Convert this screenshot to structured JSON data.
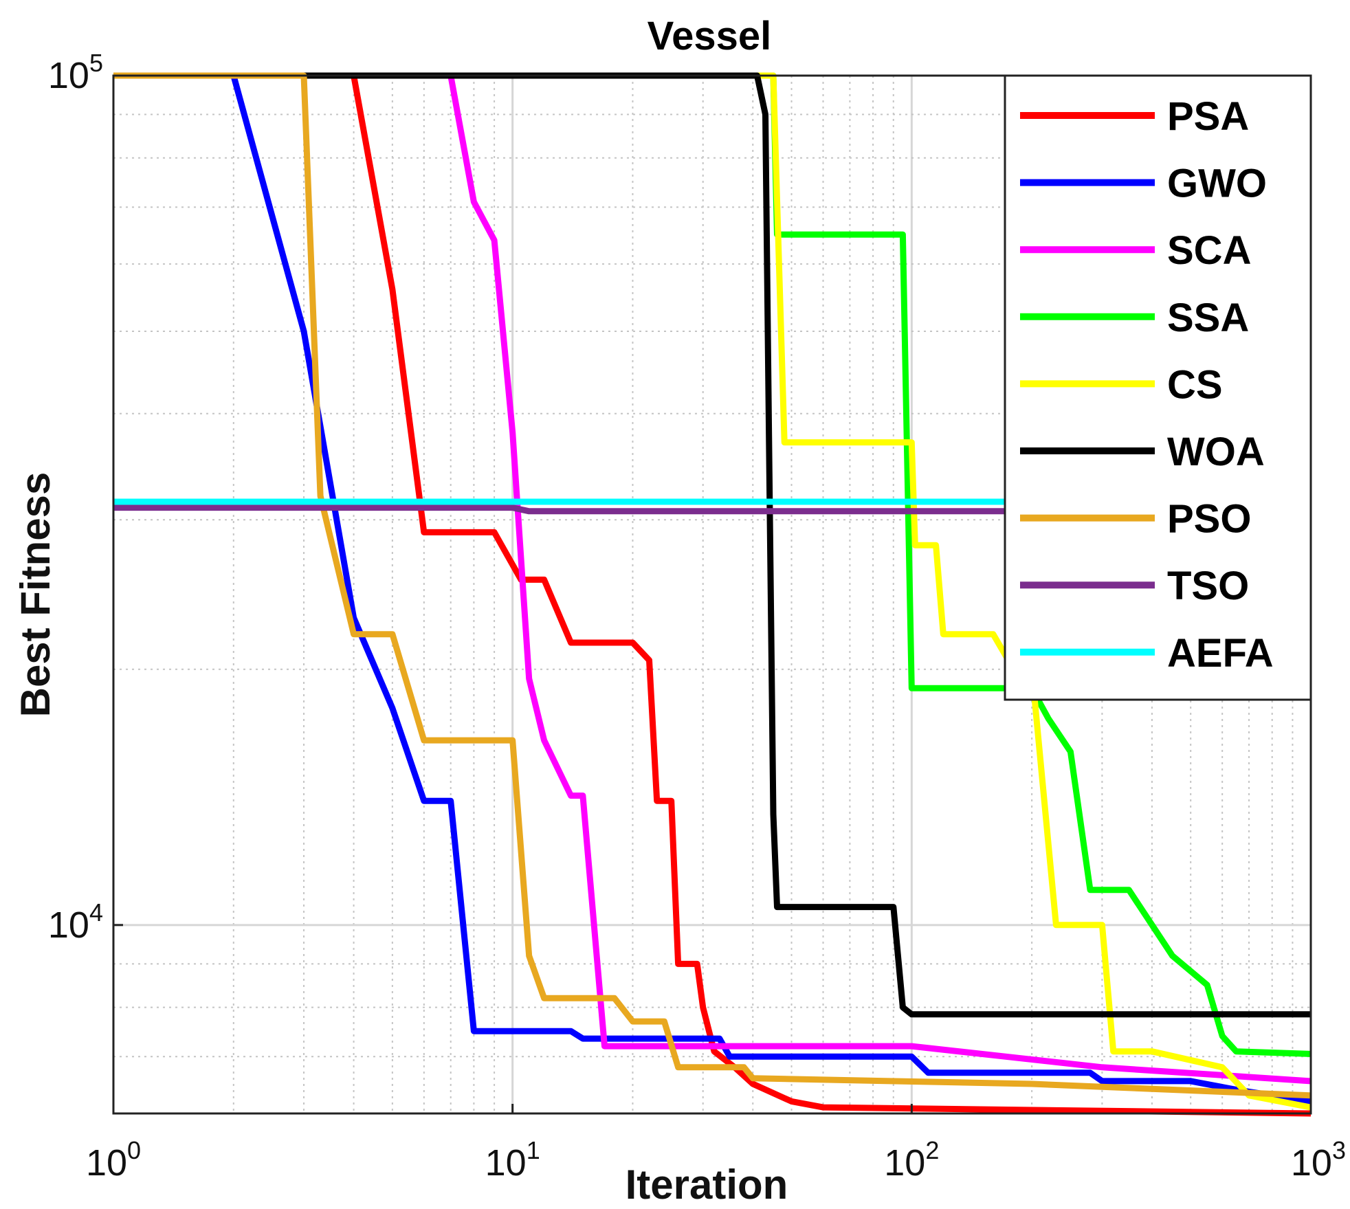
{
  "chart_data": {
    "type": "line",
    "title": "Vessel",
    "xlabel": "Iteration",
    "ylabel": "Best Fitness",
    "xscale": "log",
    "yscale": "log",
    "xlim": [
      1,
      1000
    ],
    "ylim": [
      6000,
      100000
    ],
    "grid": true,
    "legend_position": "top-right",
    "x_ticks": [
      {
        "base": "10",
        "exp": "0",
        "value": 1
      },
      {
        "base": "10",
        "exp": "1",
        "value": 10
      },
      {
        "base": "10",
        "exp": "2",
        "value": 100
      },
      {
        "base": "10",
        "exp": "3",
        "value": 1000
      }
    ],
    "y_ticks": [
      {
        "base": "10",
        "exp": "4",
        "value": 10000
      },
      {
        "base": "10",
        "exp": "5",
        "value": 100000
      }
    ],
    "series": [
      {
        "name": "PSA",
        "color": "#ff0000",
        "points": [
          [
            1,
            100000
          ],
          [
            4,
            100000
          ],
          [
            5,
            56000
          ],
          [
            6,
            29000
          ],
          [
            9,
            29000
          ],
          [
            10.5,
            25500
          ],
          [
            12,
            25500
          ],
          [
            14,
            21500
          ],
          [
            20,
            21500
          ],
          [
            22,
            20500
          ],
          [
            23,
            14000
          ],
          [
            25,
            14000
          ],
          [
            26,
            9000
          ],
          [
            29,
            9000
          ],
          [
            30,
            8000
          ],
          [
            32,
            7100
          ],
          [
            36,
            6800
          ],
          [
            40,
            6500
          ],
          [
            50,
            6200
          ],
          [
            60,
            6100
          ],
          [
            1000,
            6000
          ]
        ]
      },
      {
        "name": "GWO",
        "color": "#0000ff",
        "points": [
          [
            1,
            100000
          ],
          [
            2,
            100000
          ],
          [
            3,
            50000
          ],
          [
            4,
            23000
          ],
          [
            5,
            18000
          ],
          [
            6,
            14000
          ],
          [
            7,
            14000
          ],
          [
            8,
            7500
          ],
          [
            14,
            7500
          ],
          [
            15,
            7350
          ],
          [
            33,
            7350
          ],
          [
            35,
            7000
          ],
          [
            100,
            7000
          ],
          [
            110,
            6700
          ],
          [
            280,
            6700
          ],
          [
            300,
            6550
          ],
          [
            500,
            6550
          ],
          [
            650,
            6400
          ],
          [
            1000,
            6200
          ]
        ]
      },
      {
        "name": "SCA",
        "color": "#ff00ff",
        "points": [
          [
            1,
            100000
          ],
          [
            7,
            100000
          ],
          [
            8,
            71000
          ],
          [
            9,
            64000
          ],
          [
            10,
            38000
          ],
          [
            11,
            19500
          ],
          [
            12,
            16500
          ],
          [
            14,
            14200
          ],
          [
            15,
            14200
          ],
          [
            17,
            7200
          ],
          [
            100,
            7200
          ],
          [
            300,
            6800
          ],
          [
            1000,
            6550
          ]
        ]
      },
      {
        "name": "SSA",
        "color": "#00ff00",
        "points": [
          [
            1,
            100000
          ],
          [
            45,
            100000
          ],
          [
            46,
            65000
          ],
          [
            95,
            65000
          ],
          [
            100,
            19000
          ],
          [
            200,
            19000
          ],
          [
            220,
            17500
          ],
          [
            250,
            16000
          ],
          [
            280,
            11000
          ],
          [
            350,
            11000
          ],
          [
            450,
            9200
          ],
          [
            550,
            8500
          ],
          [
            600,
            7400
          ],
          [
            650,
            7100
          ],
          [
            1000,
            7050
          ]
        ]
      },
      {
        "name": "CS",
        "color": "#ffff00",
        "points": [
          [
            1,
            100000
          ],
          [
            45,
            100000
          ],
          [
            48,
            37000
          ],
          [
            100,
            37000
          ],
          [
            102,
            28000
          ],
          [
            115,
            28000
          ],
          [
            120,
            22000
          ],
          [
            160,
            22000
          ],
          [
            180,
            20000
          ],
          [
            200,
            20000
          ],
          [
            230,
            10000
          ],
          [
            300,
            10000
          ],
          [
            320,
            7100
          ],
          [
            400,
            7100
          ],
          [
            600,
            6800
          ],
          [
            700,
            6300
          ],
          [
            1000,
            6100
          ]
        ]
      },
      {
        "name": "WOA",
        "color": "#000000",
        "points": [
          [
            1,
            100000
          ],
          [
            41,
            100000
          ],
          [
            43,
            90000
          ],
          [
            44,
            34000
          ],
          [
            45,
            13500
          ],
          [
            46,
            10500
          ],
          [
            90,
            10500
          ],
          [
            95,
            8000
          ],
          [
            100,
            7850
          ],
          [
            1000,
            7850
          ]
        ]
      },
      {
        "name": "PSO",
        "color": "#e8a820",
        "points": [
          [
            1,
            100000
          ],
          [
            3,
            100000
          ],
          [
            3.3,
            32000
          ],
          [
            4,
            22000
          ],
          [
            5,
            22000
          ],
          [
            6,
            16500
          ],
          [
            10,
            16500
          ],
          [
            11,
            9200
          ],
          [
            12,
            8200
          ],
          [
            18,
            8200
          ],
          [
            20,
            7700
          ],
          [
            24,
            7700
          ],
          [
            26,
            6800
          ],
          [
            38,
            6800
          ],
          [
            40,
            6600
          ],
          [
            200,
            6500
          ],
          [
            1000,
            6300
          ]
        ]
      },
      {
        "name": "TSO",
        "color": "#7b2d8e",
        "points": [
          [
            1,
            31000
          ],
          [
            10,
            31000
          ],
          [
            11,
            30700
          ],
          [
            1000,
            30700
          ]
        ]
      },
      {
        "name": "AEFA",
        "color": "#00ffff",
        "points": [
          [
            1,
            31500
          ],
          [
            1000,
            31500
          ]
        ]
      }
    ]
  }
}
